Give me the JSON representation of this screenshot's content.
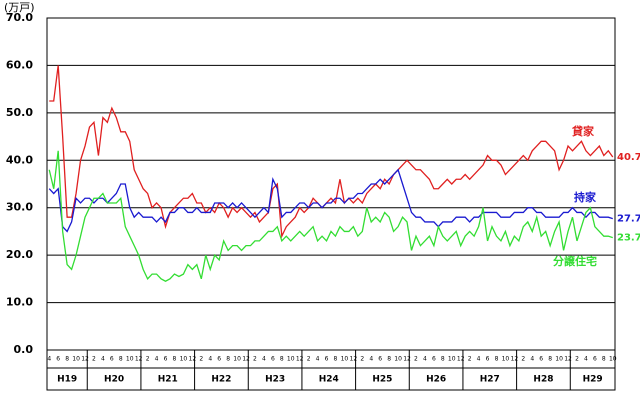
{
  "chart_data": {
    "type": "line",
    "y_label": "(万戸)",
    "categories": [
      "4",
      null,
      "6",
      null,
      "8",
      null,
      "10",
      null,
      "12",
      null,
      "2",
      null,
      "4",
      null,
      "6",
      null,
      "8",
      null,
      "10",
      null,
      "12",
      null,
      "2",
      null,
      "4",
      null,
      "6",
      null,
      "8",
      null,
      "10",
      null,
      "12",
      null,
      "2",
      null,
      "4",
      null,
      "6",
      null,
      "8",
      null,
      "10",
      null,
      "12",
      null,
      "2",
      null,
      "4",
      null,
      "6",
      null,
      "8",
      null,
      "10",
      null,
      "12",
      null,
      "2",
      null,
      "4",
      null,
      "6",
      null,
      "8",
      null,
      "10",
      null,
      "12",
      null,
      "2",
      null,
      "4",
      null,
      "6",
      null,
      "8",
      null,
      "10",
      null,
      "12",
      null,
      "2",
      null,
      "4",
      null,
      "6",
      null,
      "8",
      null,
      "10",
      null,
      "12",
      null,
      "2",
      null,
      "4",
      null,
      "6",
      null,
      "8",
      null,
      "10",
      null,
      "12",
      null,
      "2",
      null,
      "4",
      null,
      "6",
      null,
      "8",
      null,
      "10",
      null,
      "12",
      null,
      "2",
      null,
      "4",
      null,
      "6",
      null,
      "8",
      null,
      "10"
    ],
    "years": [
      "H19",
      "H20",
      "H21",
      "H22",
      "H23",
      "H24",
      "H25",
      "H26",
      "H27",
      "H28",
      "H29"
    ],
    "series": [
      {
        "name": "貸家",
        "color": "#e02020",
        "values": [
          52.5,
          52.5,
          60,
          45,
          28,
          28,
          33,
          40,
          43,
          47,
          48,
          41,
          49,
          48,
          51,
          49,
          46,
          46,
          44,
          38,
          36,
          34,
          33,
          30,
          31,
          30,
          26,
          29,
          30,
          31,
          32,
          32,
          33,
          31,
          31,
          29,
          30,
          29,
          31,
          30,
          28,
          30,
          29,
          30,
          29,
          28,
          29,
          27,
          28,
          29,
          34,
          35,
          24,
          26,
          27,
          28,
          30,
          29,
          30,
          32,
          31,
          30,
          31,
          32,
          31,
          36,
          31,
          32,
          31,
          32,
          31,
          33,
          34,
          35,
          34,
          36,
          35,
          37,
          38,
          39,
          40,
          39,
          38,
          38,
          37,
          36,
          34,
          34,
          35,
          36,
          35,
          36,
          36,
          37,
          36,
          37,
          38,
          39,
          41,
          40,
          40,
          39,
          37,
          38,
          39,
          40,
          41,
          40,
          42,
          43,
          44,
          44,
          43,
          42,
          38,
          40,
          43,
          42,
          43,
          44,
          42,
          41,
          42,
          43,
          41,
          42,
          40.7
        ]
      },
      {
        "name": "持家",
        "color": "#1a1ad0",
        "values": [
          34,
          33,
          34,
          26,
          25,
          27,
          32,
          31,
          32,
          32,
          31,
          32,
          32,
          31,
          32,
          33,
          35,
          35,
          30,
          28,
          29,
          28,
          28,
          28,
          27,
          28,
          27,
          29,
          29,
          30,
          30,
          29,
          29,
          30,
          29,
          29,
          29,
          31,
          31,
          31,
          30,
          31,
          30,
          31,
          30,
          29,
          28,
          29,
          30,
          29,
          36,
          34,
          28,
          29,
          29,
          30,
          31,
          31,
          30,
          31,
          31,
          30,
          31,
          31,
          32,
          32,
          31,
          32,
          32,
          33,
          33,
          34,
          35,
          35,
          36,
          35,
          36,
          37,
          38,
          35,
          32,
          29,
          28,
          28,
          27,
          27,
          27,
          26,
          27,
          27,
          27,
          28,
          28,
          28,
          27,
          28,
          28,
          29,
          29,
          29,
          29,
          28,
          28,
          28,
          29,
          29,
          29,
          30,
          30,
          29,
          29,
          28,
          28,
          28,
          28,
          29,
          29,
          30,
          29,
          29,
          28,
          29,
          29,
          28,
          28,
          28,
          27.7
        ]
      },
      {
        "name": "分譲住宅",
        "color": "#33dd33",
        "values": [
          38,
          34,
          42,
          25,
          18,
          17,
          20,
          24,
          28,
          30,
          32,
          32,
          33,
          31,
          31,
          31,
          32,
          26,
          24,
          22,
          20,
          17,
          15,
          16,
          16,
          15,
          14.5,
          15,
          16,
          15.5,
          16,
          18,
          17,
          18,
          15,
          20,
          17,
          20,
          19,
          23,
          21,
          22,
          22,
          21,
          22,
          22,
          23,
          23,
          24,
          25,
          25,
          26,
          23,
          24,
          23,
          24,
          25,
          24,
          25,
          26,
          23,
          24,
          23,
          25,
          24,
          26,
          25,
          25,
          26,
          24,
          25,
          30,
          27,
          28,
          27,
          29,
          28,
          25,
          26,
          28,
          27,
          21,
          24,
          22,
          23,
          24,
          22,
          26,
          24,
          23,
          24,
          25,
          22,
          24,
          25,
          24,
          26,
          30,
          23,
          26,
          24,
          23,
          25,
          22,
          24,
          23,
          26,
          27,
          25,
          28,
          24,
          25,
          22,
          25,
          27,
          21,
          25,
          28,
          23,
          26,
          29,
          30,
          26,
          25,
          24,
          24,
          23.7
        ]
      }
    ],
    "ylim": [
      0,
      70
    ],
    "yticks": [
      {
        "value": 0,
        "label": "0.0"
      },
      {
        "value": 10,
        "label": "10.0"
      },
      {
        "value": 20,
        "label": "20.0"
      },
      {
        "value": 30,
        "label": "30.0"
      },
      {
        "value": 40,
        "label": "40.0"
      },
      {
        "value": 50,
        "label": "50.0"
      },
      {
        "value": 60,
        "label": "60.0"
      },
      {
        "value": 70,
        "label": "70.0"
      }
    ],
    "grid": true
  }
}
